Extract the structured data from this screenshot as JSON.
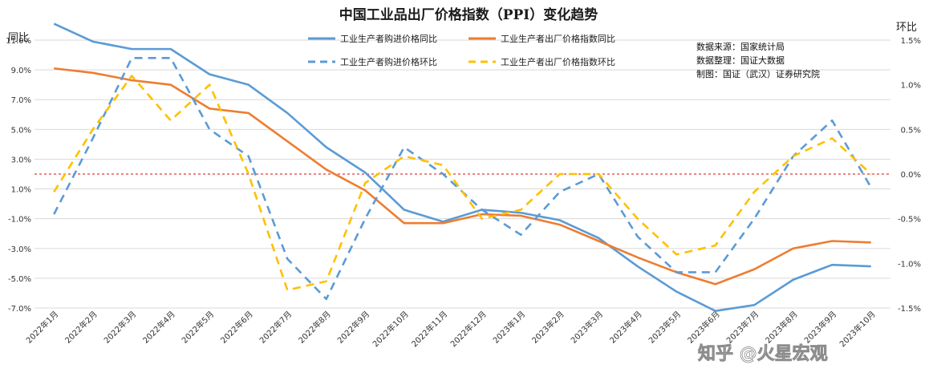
{
  "chart_data": {
    "type": "line",
    "title": "中国工业品出厂价格指数（PPI）变化趋势",
    "ylabel_left": "同比",
    "ylabel_right": "环比",
    "x": [
      "2022年1月",
      "2022年2月",
      "2022年3月",
      "2022年4月",
      "2022年5月",
      "2022年6月",
      "2022年7月",
      "2022年8月",
      "2022年9月",
      "2022年10月",
      "2022年11月",
      "2022年12月",
      "2023年1月",
      "2023年2月",
      "2023年3月",
      "2023年4月",
      "2023年5月",
      "2023年6月",
      "2023年7月",
      "2023年8月",
      "2023年9月",
      "2023年10月"
    ],
    "y_left": {
      "min": -7.0,
      "max": 11.0,
      "ticks": [
        "11.0%",
        "9.0%",
        "7.0%",
        "5.0%",
        "3.0%",
        "1.0%",
        "-1.0%",
        "-3.0%",
        "-5.0%",
        "-7.0%"
      ]
    },
    "y_right": {
      "min": -1.5,
      "max": 1.5,
      "ticks": [
        "1.5%",
        "1.0%",
        "0.5%",
        "0.0%",
        "-0.5%",
        "-1.0%",
        "-1.5%"
      ]
    },
    "grid": true,
    "reference_line": {
      "axis": "right",
      "value": 0.0,
      "color": "#e03a3a"
    },
    "series": [
      {
        "name": "工业生产者购进价格同比",
        "axis": "left",
        "style": "solid",
        "color": "#5b9bd5",
        "values": [
          12.1,
          10.9,
          10.4,
          10.4,
          8.7,
          8.0,
          6.1,
          3.8,
          2.1,
          -0.4,
          -1.2,
          -0.4,
          -0.6,
          -1.1,
          -2.3,
          -4.2,
          -5.9,
          -7.2,
          -6.8,
          -5.1,
          -4.1,
          -4.2
        ]
      },
      {
        "name": "工业生产者出厂价格指数同比",
        "axis": "left",
        "style": "solid",
        "color": "#ed7d31",
        "values": [
          9.1,
          8.8,
          8.3,
          8.0,
          6.4,
          6.1,
          4.2,
          2.3,
          0.9,
          -1.3,
          -1.3,
          -0.7,
          -0.8,
          -1.4,
          -2.5,
          -3.6,
          -4.6,
          -5.4,
          -4.4,
          -3.0,
          -2.5,
          -2.6
        ]
      },
      {
        "name": "工业生产者购进价格环比",
        "axis": "right",
        "style": "dashed",
        "color": "#5b9bd5",
        "values": [
          -0.45,
          0.4,
          1.3,
          1.3,
          0.5,
          0.2,
          -0.95,
          -1.4,
          -0.5,
          0.3,
          0.0,
          -0.4,
          -0.68,
          -0.2,
          0.0,
          -0.7,
          -1.1,
          -1.1,
          -0.5,
          0.2,
          0.6,
          -0.15
        ]
      },
      {
        "name": "工业生产者出厂价格指数环比",
        "axis": "right",
        "style": "dashed",
        "color": "#ffc000",
        "values": [
          -0.2,
          0.5,
          1.1,
          0.6,
          1.0,
          0.0,
          -1.3,
          -1.2,
          -0.1,
          0.2,
          0.1,
          -0.5,
          -0.4,
          0.0,
          0.0,
          -0.5,
          -0.9,
          -0.8,
          -0.2,
          0.2,
          0.4,
          0.0
        ]
      }
    ],
    "legend_position": "top-center"
  },
  "source_notes": [
    "数据来源：国家统计局",
    "数据整理：国证大数据",
    "制图：国证（武汉）证券研究院"
  ],
  "watermark": "知乎 @火星宏观"
}
